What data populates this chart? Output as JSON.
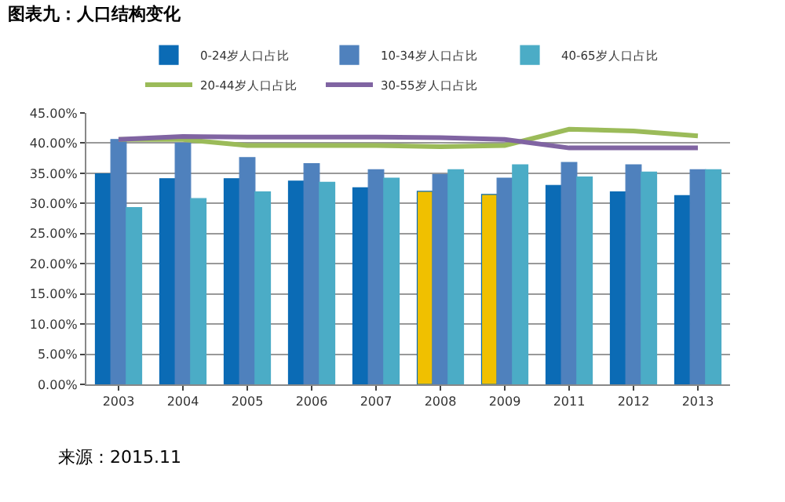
{
  "chart_data": {
    "type": "bar",
    "title": "图表九：人口结构变化",
    "categories": [
      "2003",
      "2004",
      "2005",
      "2006",
      "2007",
      "2008",
      "2009",
      "2011",
      "2012",
      "2013"
    ],
    "series": [
      {
        "name": "0-24岁人口占比",
        "color": "#0b6bb5",
        "colors": [
          "#0b6bb5",
          "#0b6bb5",
          "#0b6bb5",
          "#0b6bb5",
          "#0b6bb5",
          "#f0c000",
          "#f0c000",
          "#0b6bb5",
          "#0b6bb5",
          "#0b6bb5"
        ],
        "values": [
          34.9,
          34.1,
          34.1,
          33.7,
          32.6,
          32.0,
          31.5,
          33.0,
          31.9,
          31.3
        ]
      },
      {
        "name": "10-34岁人口占比",
        "color": "#4f81bd",
        "values": [
          40.6,
          40.0,
          37.6,
          36.6,
          35.6,
          34.8,
          34.2,
          36.8,
          36.4,
          35.6
        ]
      },
      {
        "name": "40-65岁人口占比",
        "color": "#4bacc6",
        "values": [
          29.3,
          30.8,
          31.9,
          33.5,
          34.2,
          35.6,
          36.4,
          34.4,
          35.2,
          35.6
        ]
      },
      {
        "name": "20-44岁人口占比",
        "type": "line",
        "color": "#9bbb59",
        "values": [
          40.6,
          40.6,
          39.6,
          39.6,
          39.6,
          39.4,
          39.6,
          42.3,
          42.0,
          41.2
        ]
      },
      {
        "name": "30-55岁人口占比",
        "type": "line",
        "color": "#8064a2",
        "values": [
          40.6,
          41.1,
          41.0,
          41.0,
          41.0,
          40.9,
          40.6,
          39.2,
          39.2,
          39.2
        ]
      }
    ],
    "ylim": [
      0,
      45
    ],
    "yticks": [
      {
        "value": 0,
        "label": "0.00%"
      },
      {
        "value": 5,
        "label": "5.00%"
      },
      {
        "value": 10,
        "label": "10.00%"
      },
      {
        "value": 15,
        "label": "15.00%"
      },
      {
        "value": 20,
        "label": "20.00%"
      },
      {
        "value": 25,
        "label": "25.00%"
      },
      {
        "value": 30,
        "label": "30.00%"
      },
      {
        "value": 35,
        "label": "35.00%"
      },
      {
        "value": 40,
        "label": "40.00%"
      },
      {
        "value": 45,
        "label": "45.00%"
      }
    ],
    "grid": "y",
    "legend": "top",
    "marker": "none",
    "line_style": "solid",
    "annotations": [
      "来源：2015.11"
    ]
  }
}
